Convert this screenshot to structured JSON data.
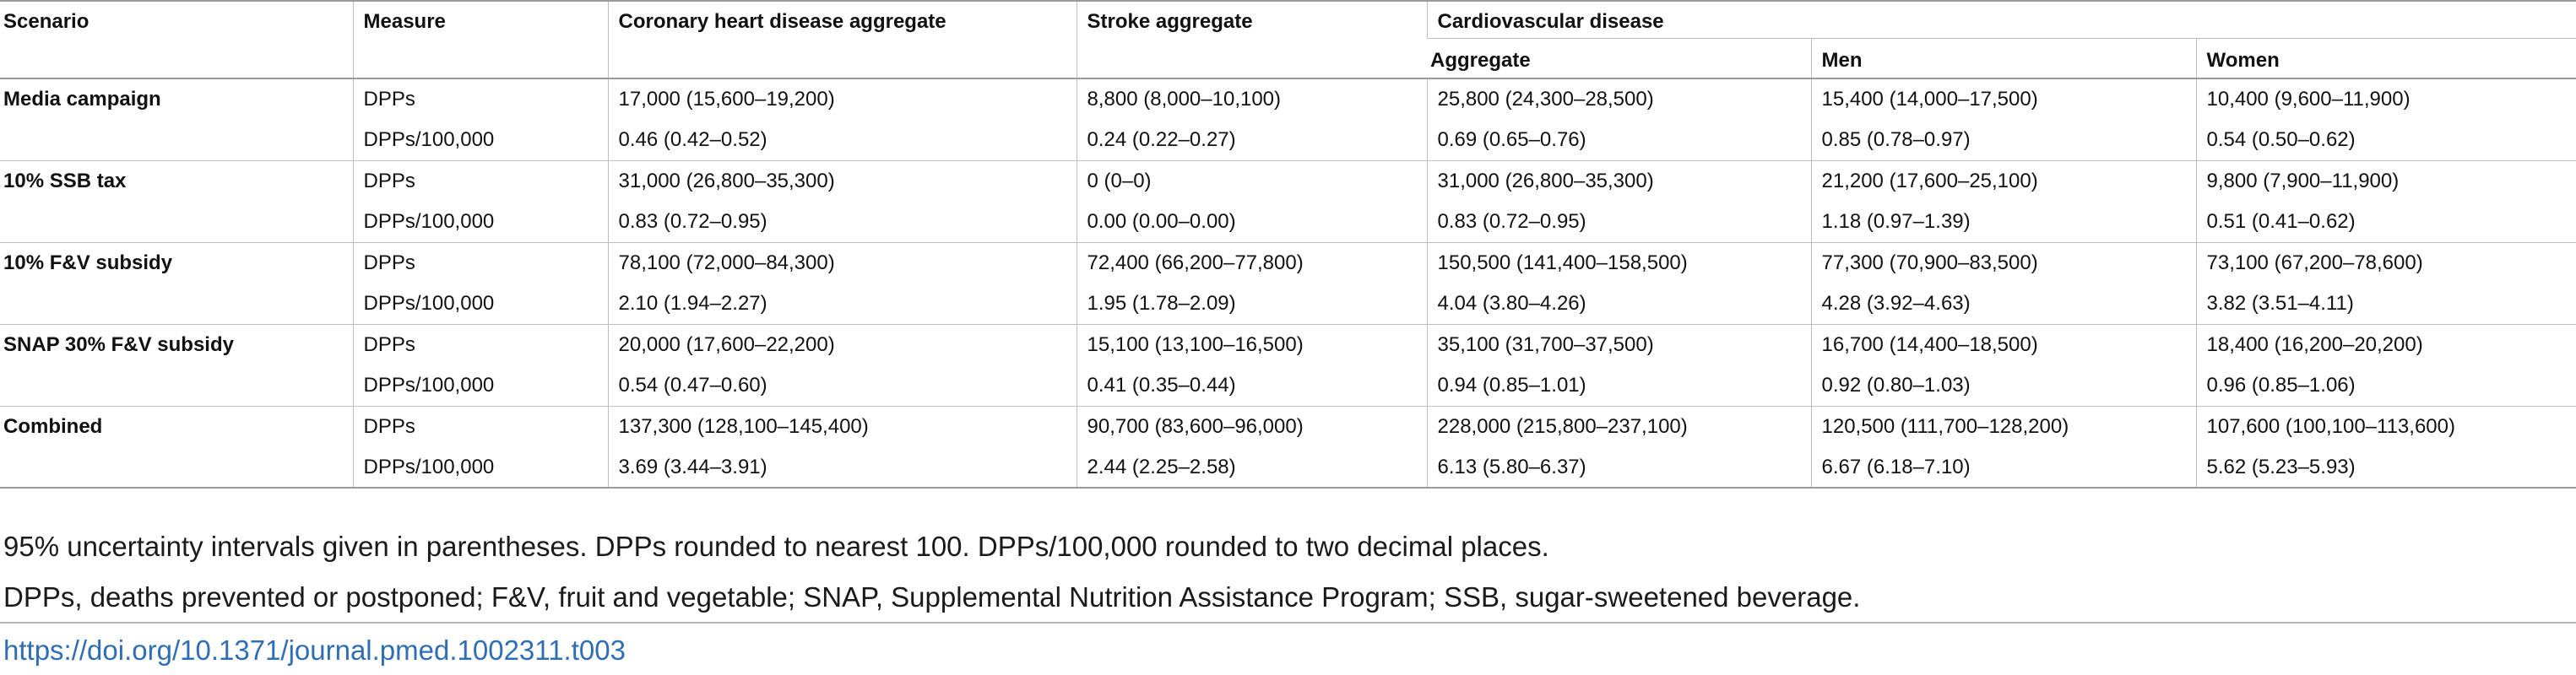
{
  "table": {
    "headers": {
      "scenario": "Scenario",
      "measure": "Measure",
      "chd": "Coronary heart disease aggregate",
      "stroke": "Stroke aggregate",
      "cvd": "Cardiovascular disease",
      "cvd_aggregate": "Aggregate",
      "cvd_men": "Men",
      "cvd_women": "Women"
    },
    "rows": [
      {
        "scenario": "Media campaign",
        "measure": "DPPs",
        "chd": "17,000 (15,600–19,200)",
        "stroke": "8,800 (8,000–10,100)",
        "aggregate": "25,800 (24,300–28,500)",
        "men": "15,400 (14,000–17,500)",
        "women": "10,400 (9,600–11,900)"
      },
      {
        "scenario": "",
        "measure": "DPPs/100,000",
        "chd": "0.46 (0.42–0.52)",
        "stroke": "0.24 (0.22–0.27)",
        "aggregate": "0.69 (0.65–0.76)",
        "men": "0.85 (0.78–0.97)",
        "women": "0.54 (0.50–0.62)"
      },
      {
        "scenario": "10% SSB tax",
        "measure": "DPPs",
        "chd": "31,000 (26,800–35,300)",
        "stroke": "0 (0–0)",
        "aggregate": "31,000 (26,800–35,300)",
        "men": "21,200 (17,600–25,100)",
        "women": "9,800 (7,900–11,900)"
      },
      {
        "scenario": "",
        "measure": "DPPs/100,000",
        "chd": "0.83 (0.72–0.95)",
        "stroke": "0.00 (0.00–0.00)",
        "aggregate": "0.83 (0.72–0.95)",
        "men": "1.18 (0.97–1.39)",
        "women": "0.51 (0.41–0.62)"
      },
      {
        "scenario": "10% F&V subsidy",
        "measure": "DPPs",
        "chd": "78,100 (72,000–84,300)",
        "stroke": "72,400 (66,200–77,800)",
        "aggregate": "150,500 (141,400–158,500)",
        "men": "77,300 (70,900–83,500)",
        "women": "73,100 (67,200–78,600)"
      },
      {
        "scenario": "",
        "measure": "DPPs/100,000",
        "chd": "2.10 (1.94–2.27)",
        "stroke": "1.95 (1.78–2.09)",
        "aggregate": "4.04 (3.80–4.26)",
        "men": "4.28 (3.92–4.63)",
        "women": "3.82 (3.51–4.11)"
      },
      {
        "scenario": "SNAP 30% F&V subsidy",
        "measure": "DPPs",
        "chd": "20,000 (17,600–22,200)",
        "stroke": "15,100 (13,100–16,500)",
        "aggregate": "35,100 (31,700–37,500)",
        "men": "16,700 (14,400–18,500)",
        "women": "18,400 (16,200–20,200)"
      },
      {
        "scenario": "",
        "measure": "DPPs/100,000",
        "chd": "0.54 (0.47–0.60)",
        "stroke": "0.41 (0.35–0.44)",
        "aggregate": "0.94 (0.85–1.01)",
        "men": "0.92 (0.80–1.03)",
        "women": "0.96 (0.85–1.06)"
      },
      {
        "scenario": "Combined",
        "measure": "DPPs",
        "chd": "137,300 (128,100–145,400)",
        "stroke": "90,700 (83,600–96,000)",
        "aggregate": "228,000 (215,800–237,100)",
        "men": "120,500 (111,700–128,200)",
        "women": "107,600 (100,100–113,600)"
      },
      {
        "scenario": "",
        "measure": "DPPs/100,000",
        "chd": "3.69 (3.44–3.91)",
        "stroke": "2.44 (2.25–2.58)",
        "aggregate": "6.13 (5.80–6.37)",
        "men": "6.67 (6.18–7.10)",
        "women": "5.62 (5.23–5.93)"
      }
    ]
  },
  "notes": {
    "line1": "95% uncertainty intervals given in parentheses. DPPs rounded to nearest 100. DPPs/100,000 rounded to two decimal places.",
    "line2": "DPPs, deaths prevented or postponed; F&V, fruit and vegetable; SNAP, Supplemental Nutrition Assistance Program; SSB, sugar-sweetened beverage."
  },
  "doi": {
    "text": "https://doi.org/10.1371/journal.pmed.1002311.t003"
  },
  "colors": {
    "link": "#2f6db5",
    "rule": "#9a9a9a"
  }
}
